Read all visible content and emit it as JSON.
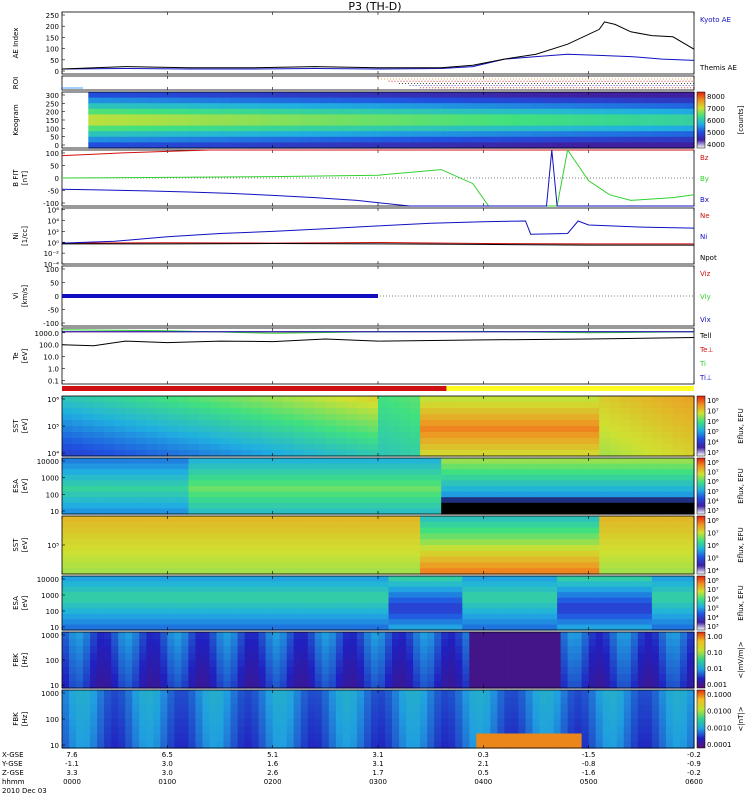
{
  "title": "P3 (TH-D)",
  "colors": {
    "black": "#000000",
    "red": "#d01010",
    "green": "#30d030",
    "blue": "#1010c0",
    "orange": "#e08a10",
    "bar_red": "#d01010",
    "bar_yellow": "#ffff20"
  },
  "chart_data": [
    {
      "type": "line",
      "id": "ae",
      "ylabel": "AE Index",
      "yticks": [
        "250",
        "200",
        "150",
        "100",
        "50",
        "0"
      ],
      "ylim": [
        0,
        250
      ],
      "series": [
        {
          "name": "Kyoto AE",
          "color": "#1010c0",
          "x": [
            0,
            60,
            120,
            180,
            240,
            300,
            360,
            390,
            420,
            450,
            480,
            510,
            540,
            570,
            600
          ],
          "values": [
            20,
            22,
            20,
            20,
            22,
            20,
            22,
            30,
            60,
            70,
            80,
            75,
            70,
            60,
            55
          ]
        },
        {
          "name": "Themis AE",
          "color": "#000000",
          "x": [
            0,
            60,
            120,
            180,
            240,
            300,
            360,
            390,
            420,
            450,
            480,
            510,
            515,
            525,
            540,
            560,
            580,
            600
          ],
          "values": [
            20,
            30,
            25,
            25,
            30,
            25,
            25,
            35,
            60,
            80,
            120,
            180,
            210,
            200,
            170,
            155,
            150,
            100
          ]
        }
      ]
    },
    {
      "type": "timeline",
      "id": "roi",
      "ylabel": "ROI"
    },
    {
      "type": "heatmap",
      "id": "keogram",
      "ylabel": "Keogram",
      "yticks": [
        "300",
        "250",
        "200",
        "150",
        "100",
        "50",
        "0"
      ],
      "colorbar": {
        "label": "[counts]",
        "ticks": [
          "8000",
          "7000",
          "6000",
          "5000",
          "4000"
        ]
      }
    },
    {
      "type": "line",
      "id": "bfit",
      "ylabel": "B FIT",
      "units": "[nT]",
      "yticks": [
        "100",
        "50",
        "0",
        "-50",
        "-100"
      ],
      "ylim": [
        -100,
        100
      ],
      "series": [
        {
          "name": "Bz",
          "color": "#d01010",
          "x": [
            0,
            30,
            60,
            100,
            140,
            180,
            220,
            300,
            420,
            540,
            600
          ],
          "values": [
            80,
            85,
            90,
            95,
            100,
            105,
            110,
            115,
            118,
            118,
            118
          ]
        },
        {
          "name": "By",
          "color": "#30d030",
          "x": [
            0,
            100,
            200,
            300,
            360,
            390,
            405,
            470,
            480,
            500,
            520,
            540,
            560,
            580,
            600
          ],
          "values": [
            0,
            2,
            5,
            10,
            30,
            -20,
            -110,
            -110,
            100,
            -10,
            -60,
            -80,
            -75,
            -70,
            -60
          ]
        },
        {
          "name": "Bx",
          "color": "#1010c0",
          "x": [
            0,
            40,
            80,
            120,
            160,
            200,
            240,
            280,
            330,
            400,
            460,
            465,
            470,
            600
          ],
          "values": [
            -40,
            -43,
            -46,
            -50,
            -55,
            -62,
            -70,
            -80,
            -100,
            -110,
            -110,
            100,
            -110,
            -110
          ]
        }
      ]
    },
    {
      "type": "line",
      "id": "ni",
      "ylabel": "Ni",
      "units": "[1/cc]",
      "ylog": true,
      "series": [
        {
          "name": "Ne",
          "color": "#d01010",
          "x": [
            0,
            100,
            200,
            300,
            400,
            500,
            600
          ],
          "values": [
            0.7,
            0.8,
            0.7,
            0.9,
            0.6,
            0.5,
            0.5
          ]
        },
        {
          "name": "Ni",
          "color": "#1010c0",
          "x": [
            0,
            50,
            100,
            150,
            200,
            250,
            300,
            350,
            400,
            440,
            445,
            480,
            490,
            500,
            550,
            600
          ],
          "values": [
            0.7,
            1.5,
            10,
            40,
            100,
            300,
            1000,
            3000,
            6000,
            8000,
            30,
            40,
            8000,
            1500,
            600,
            400
          ]
        },
        {
          "name": "Npot",
          "color": "#000000",
          "x": [
            0,
            100,
            200,
            300,
            400,
            500,
            600
          ],
          "values": [
            0.5,
            0.5,
            0.6,
            0.5,
            0.4,
            0.3,
            0.3
          ]
        }
      ]
    },
    {
      "type": "line",
      "id": "vi",
      "ylabel": "Vi",
      "units": "[km/s]",
      "yticks": [
        "100",
        "50",
        "0",
        "-50",
        "-100"
      ],
      "ylim": [
        -100,
        100
      ],
      "series": [
        {
          "name": "Viz",
          "color": "#d01010",
          "x": [
            0,
            300
          ],
          "values": [
            0,
            0
          ]
        },
        {
          "name": "Viy",
          "color": "#30d030",
          "x": [
            0,
            300
          ],
          "values": [
            0,
            0
          ]
        },
        {
          "name": "Vix",
          "color": "#1010c0",
          "x": [
            0,
            300
          ],
          "values": [
            0,
            0
          ]
        }
      ]
    },
    {
      "type": "line",
      "id": "te",
      "ylabel": "Te",
      "units": "[eV]",
      "ylog": true,
      "series": [
        {
          "name": "Tell",
          "color": "#000000",
          "x": [
            0,
            30,
            60,
            100,
            150,
            200,
            250,
            300,
            400,
            500,
            600
          ],
          "values": [
            100,
            80,
            200,
            150,
            200,
            180,
            300,
            200,
            250,
            300,
            400
          ]
        },
        {
          "name": "Te⊥",
          "color": "#d01010",
          "x": [
            0,
            600
          ],
          "values": [
            1200,
            1200
          ]
        },
        {
          "name": "Ti",
          "color": "#30d030",
          "x": [
            0,
            100,
            200,
            300,
            400,
            500,
            600
          ],
          "values": [
            1800,
            1500,
            900,
            1200,
            1300,
            1000,
            1200
          ]
        },
        {
          "name": "Ti⊥",
          "color": "#1010c0",
          "x": [
            0,
            600
          ],
          "values": [
            1200,
            1200
          ]
        }
      ]
    },
    {
      "type": "heatmap",
      "id": "sst_i",
      "ylabel": "SST",
      "units": "[eV]",
      "yticks": [
        "10⁶",
        "10⁵",
        "10⁴"
      ],
      "colorbar": {
        "label": "Eflux, EFU",
        "ticks": [
          "10⁸",
          "10⁷",
          "10⁶",
          "10⁵",
          "10⁴",
          "10³"
        ]
      }
    },
    {
      "type": "heatmap",
      "id": "esa_i",
      "ylabel": "ESA",
      "units": "[eV]",
      "yticks": [
        "10000",
        "1000",
        "100",
        "10"
      ],
      "colorbar": {
        "label": "Eflux, EFU",
        "ticks": [
          "10⁸",
          "10⁷",
          "10⁶",
          "10⁵",
          "10⁴",
          "10³"
        ]
      }
    },
    {
      "type": "heatmap",
      "id": "sst_e",
      "ylabel": "SST",
      "units": "[eV]",
      "yticks": [
        "10⁵"
      ],
      "colorbar": {
        "label": "Eflux, EFU",
        "ticks": [
          "10⁸",
          "10⁷",
          "10⁶",
          "10⁵",
          "10⁴"
        ]
      }
    },
    {
      "type": "heatmap",
      "id": "esa_e",
      "ylabel": "ESA",
      "units": "[eV]",
      "yticks": [
        "10000",
        "1000",
        "100",
        "10"
      ],
      "colorbar": {
        "label": "Eflux, EFU",
        "ticks": [
          "10⁸",
          "10⁷",
          "10⁶",
          "10⁵",
          "10⁴",
          "10³"
        ]
      }
    },
    {
      "type": "heatmap",
      "id": "fbk_e",
      "ylabel": "FBK",
      "units": "[Hz]",
      "yticks": [
        "1000",
        "100",
        "10"
      ],
      "colorbar": {
        "label": "<|mV/m|>",
        "ticks": [
          "1.00",
          "0.10",
          "0.01",
          "0.001"
        ]
      }
    },
    {
      "type": "heatmap",
      "id": "fbk_b",
      "ylabel": "FBK",
      "units": "[Hz]",
      "yticks": [
        "1000",
        "100",
        "10"
      ],
      "colorbar": {
        "label": "<|nT|>",
        "ticks": [
          "0.1000",
          "0.0100",
          "0.0010",
          "0.0001"
        ]
      }
    }
  ],
  "legends": {
    "ae": [
      "Kyoto AE",
      "Themis AE"
    ],
    "bfit": [
      "Bz",
      "By",
      "Bx"
    ],
    "ni": [
      "Ne",
      "Ni",
      "Npot"
    ],
    "vi": [
      "Viz",
      "Viy",
      "Vix"
    ],
    "te": [
      "Tell",
      "Te⊥",
      "Ti",
      "Ti⊥"
    ]
  },
  "footer": {
    "row_labels": [
      "X-GSE",
      "Y-GSE",
      "Z-GSE",
      "hhmm",
      "2010 Dec 03"
    ],
    "columns": [
      {
        "x": "7.6",
        "y": "-1.1",
        "z": "3.3",
        "t": "0000"
      },
      {
        "x": "6.5",
        "y": "3.0",
        "z": "3.0",
        "t": "0100"
      },
      {
        "x": "5.1",
        "y": "1.6",
        "z": "2.6",
        "t": "0200"
      },
      {
        "x": "3.1",
        "y": "3.1",
        "z": "1.7",
        "t": "0300"
      },
      {
        "x": "0.3",
        "y": "2.1",
        "z": "0.5",
        "t": "0400"
      },
      {
        "x": "-1.5",
        "y": "-0.8",
        "z": "-1.6",
        "t": "0500"
      },
      {
        "x": "-0.2",
        "y": "-0.9",
        "z": "-0.2",
        "t": "0600"
      }
    ]
  }
}
